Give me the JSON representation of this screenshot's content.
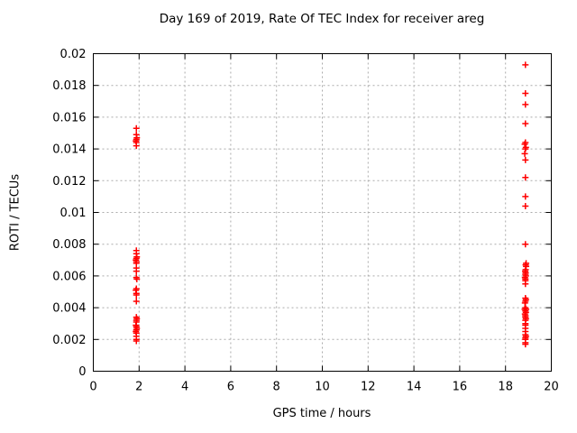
{
  "chart_data": {
    "type": "scatter",
    "title": "Day 169 of 2019, Rate Of TEC Index for receiver areg",
    "xlabel": "GPS time / hours",
    "ylabel": "ROTI / TECUs",
    "xlim": [
      0,
      20
    ],
    "ylim": [
      0,
      0.02
    ],
    "grid": true,
    "legend_position": "none",
    "xticks": {
      "values": [
        0,
        2,
        4,
        6,
        8,
        10,
        12,
        14,
        16,
        18,
        20
      ],
      "labels": [
        "0",
        "2",
        "4",
        "6",
        "8",
        "10",
        "12",
        "14",
        "16",
        "18",
        "20"
      ]
    },
    "yticks": {
      "values": [
        0,
        0.002,
        0.004,
        0.006,
        0.008,
        0.01,
        0.012,
        0.014,
        0.016,
        0.018,
        0.02
      ],
      "labels": [
        "0",
        "0.002",
        "0.004",
        "0.006",
        "0.008",
        "0.01",
        "0.012",
        "0.014",
        "0.016",
        "0.018",
        "0.02"
      ]
    },
    "colors": {
      "marker": "#ff0000",
      "grid": "#ababab",
      "border": "#000000",
      "text": "#000000"
    },
    "marker_shape": "plus",
    "series": [
      {
        "name": "ROTI",
        "points": [
          [
            1.88,
            0.0153
          ],
          [
            1.88,
            0.0149
          ],
          [
            1.9,
            0.0147
          ],
          [
            1.88,
            0.0146
          ],
          [
            1.86,
            0.0145
          ],
          [
            1.88,
            0.0144
          ],
          [
            1.88,
            0.0142
          ],
          [
            1.88,
            0.0076
          ],
          [
            1.88,
            0.0074
          ],
          [
            1.9,
            0.0072
          ],
          [
            1.88,
            0.0071
          ],
          [
            1.86,
            0.007
          ],
          [
            1.88,
            0.0069
          ],
          [
            1.88,
            0.0068
          ],
          [
            1.88,
            0.0065
          ],
          [
            1.88,
            0.0063
          ],
          [
            1.88,
            0.0059
          ],
          [
            1.9,
            0.0058
          ],
          [
            1.88,
            0.0052
          ],
          [
            1.86,
            0.0051
          ],
          [
            1.88,
            0.0049
          ],
          [
            1.88,
            0.0048
          ],
          [
            1.88,
            0.0044
          ],
          [
            1.88,
            0.0034
          ],
          [
            1.9,
            0.0033
          ],
          [
            1.88,
            0.0032
          ],
          [
            1.88,
            0.0031
          ],
          [
            1.86,
            0.0029
          ],
          [
            1.88,
            0.0028
          ],
          [
            1.9,
            0.0027
          ],
          [
            1.88,
            0.0026
          ],
          [
            1.86,
            0.0025
          ],
          [
            1.88,
            0.0024
          ],
          [
            1.88,
            0.0022
          ],
          [
            1.88,
            0.002
          ],
          [
            1.88,
            0.0019
          ],
          [
            18.87,
            0.0193
          ],
          [
            18.87,
            0.0175
          ],
          [
            18.87,
            0.0168
          ],
          [
            18.87,
            0.0156
          ],
          [
            18.87,
            0.0144
          ],
          [
            18.84,
            0.0143
          ],
          [
            18.89,
            0.0141
          ],
          [
            18.87,
            0.014
          ],
          [
            18.84,
            0.0137
          ],
          [
            18.87,
            0.0133
          ],
          [
            18.87,
            0.0122
          ],
          [
            18.87,
            0.011
          ],
          [
            18.87,
            0.0104
          ],
          [
            18.87,
            0.008
          ],
          [
            18.9,
            0.0068
          ],
          [
            18.88,
            0.0067
          ],
          [
            18.9,
            0.0066
          ],
          [
            18.88,
            0.0064
          ],
          [
            18.86,
            0.0063
          ],
          [
            18.88,
            0.0062
          ],
          [
            18.87,
            0.0061
          ],
          [
            18.89,
            0.006
          ],
          [
            18.85,
            0.0059
          ],
          [
            18.87,
            0.0058
          ],
          [
            18.87,
            0.0057
          ],
          [
            18.87,
            0.0055
          ],
          [
            18.87,
            0.0046
          ],
          [
            18.89,
            0.0045
          ],
          [
            18.87,
            0.0044
          ],
          [
            18.85,
            0.0043
          ],
          [
            18.87,
            0.004
          ],
          [
            18.84,
            0.0039
          ],
          [
            18.9,
            0.0039
          ],
          [
            18.87,
            0.0038
          ],
          [
            18.89,
            0.0037
          ],
          [
            18.85,
            0.0036
          ],
          [
            18.87,
            0.0035
          ],
          [
            18.87,
            0.0034
          ],
          [
            18.89,
            0.0033
          ],
          [
            18.87,
            0.0032
          ],
          [
            18.87,
            0.003
          ],
          [
            18.87,
            0.0029
          ],
          [
            18.87,
            0.0027
          ],
          [
            18.87,
            0.0025
          ],
          [
            18.87,
            0.0023
          ],
          [
            18.89,
            0.0022
          ],
          [
            18.87,
            0.0021
          ],
          [
            18.87,
            0.002
          ],
          [
            18.87,
            0.0018
          ],
          [
            18.87,
            0.0017
          ]
        ]
      }
    ]
  }
}
